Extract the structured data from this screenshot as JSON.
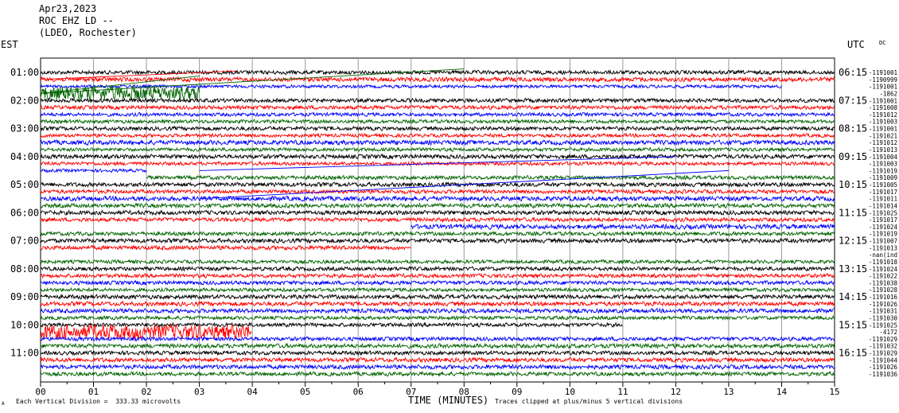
{
  "header": {
    "date": "Apr23,2023",
    "station": "ROC EHZ LD --",
    "network": "(LDEO, Rochester)"
  },
  "corner": {
    "left": "EST",
    "right": "UTC",
    "dc": "DC"
  },
  "footer": {
    "scale": "Each Vertical Division =  333.33 microvolts",
    "clip": "Traces clipped at plus/minus 5 vertical divisions",
    "mark": "A"
  },
  "chart_data": {
    "type": "line",
    "xlabel": "TIME (MINUTES)",
    "x_ticks": [
      "00",
      "01",
      "02",
      "03",
      "04",
      "05",
      "06",
      "07",
      "08",
      "09",
      "10",
      "11",
      "12",
      "13",
      "14",
      "15"
    ],
    "xlim": [
      0,
      15
    ],
    "grid": true,
    "series_colors": [
      "#000000",
      "#ff0000",
      "#0000ff",
      "#006400"
    ],
    "est_labels": [
      "01:00",
      "02:00",
      "03:00",
      "04:00",
      "05:00",
      "06:00",
      "07:00",
      "08:00",
      "09:00",
      "10:00",
      "11:00"
    ],
    "utc_labels": [
      "06:15",
      "07:15",
      "08:15",
      "09:15",
      "10:15",
      "11:15",
      "12:15",
      "13:15",
      "14:15",
      "15:15",
      "16:15"
    ],
    "dc_offsets": [
      "-1191001",
      "-1190999",
      "-1191001",
      "-1862",
      "-1191001",
      "-1191008",
      "-1191012",
      "-1191003",
      "-1191001",
      "-1191021",
      "-1191012",
      "-1191013",
      "-1191004",
      "-1191003",
      "-1191019",
      "-1191009",
      "-1191005",
      "-1191017",
      "-1191011",
      "-1191014",
      "-1191025",
      "-1191017",
      "-1191024",
      "-1191019",
      "-1191007",
      "-1191013",
      "-nan(ind",
      "-1191018",
      "-1191024",
      "-1191022",
      "-1191038",
      "-1191028",
      "-1191016",
      "-1191026",
      "-1191031",
      "-1191030",
      "-1191025",
      "-4172",
      "-1191029",
      "-1191032",
      "-1191029",
      "-1191044",
      "-1191026",
      "-1191036"
    ],
    "traces": [
      {
        "amp": 2.2,
        "start": 0,
        "end": 15
      },
      {
        "amp": 2.5,
        "start": 0,
        "end": 15
      },
      {
        "amp": 1.8,
        "start": 0,
        "end": 14
      },
      {
        "amp": 8.5,
        "start": 0,
        "end": 3
      },
      {
        "amp": 2.2,
        "start": 0,
        "end": 15
      },
      {
        "amp": 2.2,
        "start": 0,
        "end": 15
      },
      {
        "amp": 2.0,
        "start": 0,
        "end": 15
      },
      {
        "amp": 2.0,
        "start": 0,
        "end": 15
      },
      {
        "amp": 2.2,
        "start": 0,
        "end": 15
      },
      {
        "amp": 2.0,
        "start": 0,
        "end": 15
      },
      {
        "amp": 2.6,
        "start": 0,
        "end": 15
      },
      {
        "amp": 2.0,
        "start": 0,
        "end": 15
      },
      {
        "amp": 2.4,
        "start": 0,
        "end": 15
      },
      {
        "amp": 2.0,
        "start": 0,
        "end": 15
      },
      {
        "amp": 1.8,
        "start": 0,
        "end": 2
      },
      {
        "amp": 2.2,
        "start": 2,
        "end": 15
      },
      {
        "amp": 2.4,
        "start": 0,
        "end": 15
      },
      {
        "amp": 2.2,
        "start": 0,
        "end": 15
      },
      {
        "amp": 2.6,
        "start": 0,
        "end": 15
      },
      {
        "amp": 2.4,
        "start": 0,
        "end": 15
      },
      {
        "amp": 2.4,
        "start": 0,
        "end": 15
      },
      {
        "amp": 2.2,
        "start": 0,
        "end": 15
      },
      {
        "amp": 2.6,
        "start": 7,
        "end": 15
      },
      {
        "amp": 2.2,
        "start": 0,
        "end": 15
      },
      {
        "amp": 2.4,
        "start": 0,
        "end": 15
      },
      {
        "amp": 2.4,
        "start": 0,
        "end": 7
      },
      {
        "amp": 0,
        "start": 0,
        "end": 0
      },
      {
        "amp": 2.0,
        "start": 0,
        "end": 15
      },
      {
        "amp": 2.2,
        "start": 0,
        "end": 15
      },
      {
        "amp": 2.2,
        "start": 0,
        "end": 15
      },
      {
        "amp": 2.2,
        "start": 0,
        "end": 15
      },
      {
        "amp": 2.0,
        "start": 0,
        "end": 15
      },
      {
        "amp": 2.4,
        "start": 0,
        "end": 15
      },
      {
        "amp": 2.4,
        "start": 0,
        "end": 15
      },
      {
        "amp": 2.4,
        "start": 0,
        "end": 15
      },
      {
        "amp": 2.0,
        "start": 0,
        "end": 15
      },
      {
        "amp": 2.2,
        "start": 0,
        "end": 11
      },
      {
        "amp": 8.5,
        "start": 0,
        "end": 4
      },
      {
        "amp": 2.2,
        "start": 0,
        "end": 15
      },
      {
        "amp": 2.4,
        "start": 0,
        "end": 15
      },
      {
        "amp": 2.2,
        "start": 0,
        "end": 15
      },
      {
        "amp": 2.4,
        "start": 0,
        "end": 15
      },
      {
        "amp": 2.4,
        "start": 0,
        "end": 15
      },
      {
        "amp": 2.2,
        "start": 0,
        "end": 15
      }
    ],
    "glitch_lines": [
      {
        "trace": 3,
        "x0": 0,
        "x1": 8,
        "dv": -3.5
      },
      {
        "trace": 3,
        "x0": 0,
        "x1": 3,
        "dv": -2.5
      },
      {
        "trace": 1,
        "x0": 0,
        "x1": 3.7,
        "dv": -1.2
      },
      {
        "trace": 14,
        "x0": 3,
        "x1": 12,
        "dv": -2
      },
      {
        "trace": 18,
        "x0": 3,
        "x1": 13,
        "dv": -4
      }
    ]
  }
}
